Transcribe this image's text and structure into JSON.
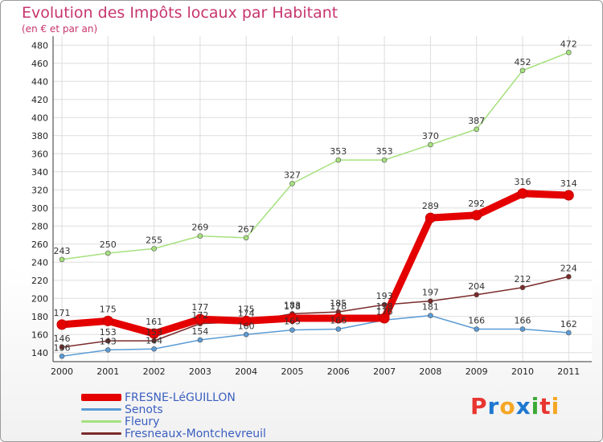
{
  "chart_data": {
    "type": "line",
    "title": "Evolution des Impôts locaux par Habitant",
    "subtitle": "(en € et par an)",
    "x": [
      "2000",
      "2001",
      "2002",
      "2003",
      "2004",
      "2005",
      "2006",
      "2007",
      "2008",
      "2009",
      "2010",
      "2011"
    ],
    "ylim": [
      130,
      490
    ],
    "yticks": [
      140,
      160,
      180,
      200,
      220,
      240,
      260,
      280,
      300,
      320,
      340,
      360,
      380,
      400,
      420,
      440,
      460,
      480
    ],
    "grid": true,
    "series": [
      {
        "name": "FRESNE-LéGUILLON",
        "color": "#e50000",
        "width": 9,
        "values": [
          171,
          175,
          161,
          177,
          175,
          178,
          178,
          178,
          289,
          292,
          316,
          314
        ]
      },
      {
        "name": "Senots",
        "color": "#5b9bd5",
        "width": 1.5,
        "values": [
          136,
          143,
          144,
          154,
          160,
          165,
          166,
          176,
          181,
          166,
          166,
          162
        ]
      },
      {
        "name": "Fleury",
        "color": "#a6e07e",
        "width": 1.5,
        "values": [
          243,
          250,
          255,
          269,
          267,
          327,
          353,
          353,
          370,
          387,
          452,
          472
        ]
      },
      {
        "name": "Fresneaux-Montchevreuil",
        "color": "#7a2a2a",
        "width": 1.5,
        "values": [
          146,
          153,
          153,
          172,
          174,
          183,
          185,
          193,
          197,
          204,
          212,
          224
        ]
      }
    ],
    "legend_position": "bottom-left"
  },
  "logo": {
    "letters": [
      "P",
      "r",
      "o",
      "x",
      "i",
      "t",
      "i"
    ],
    "colors": [
      "#e8352f",
      "#1e78d0",
      "#f5a623",
      "#1e78d0",
      "#3aaa35",
      "#e8352f",
      "#f5a623"
    ]
  }
}
